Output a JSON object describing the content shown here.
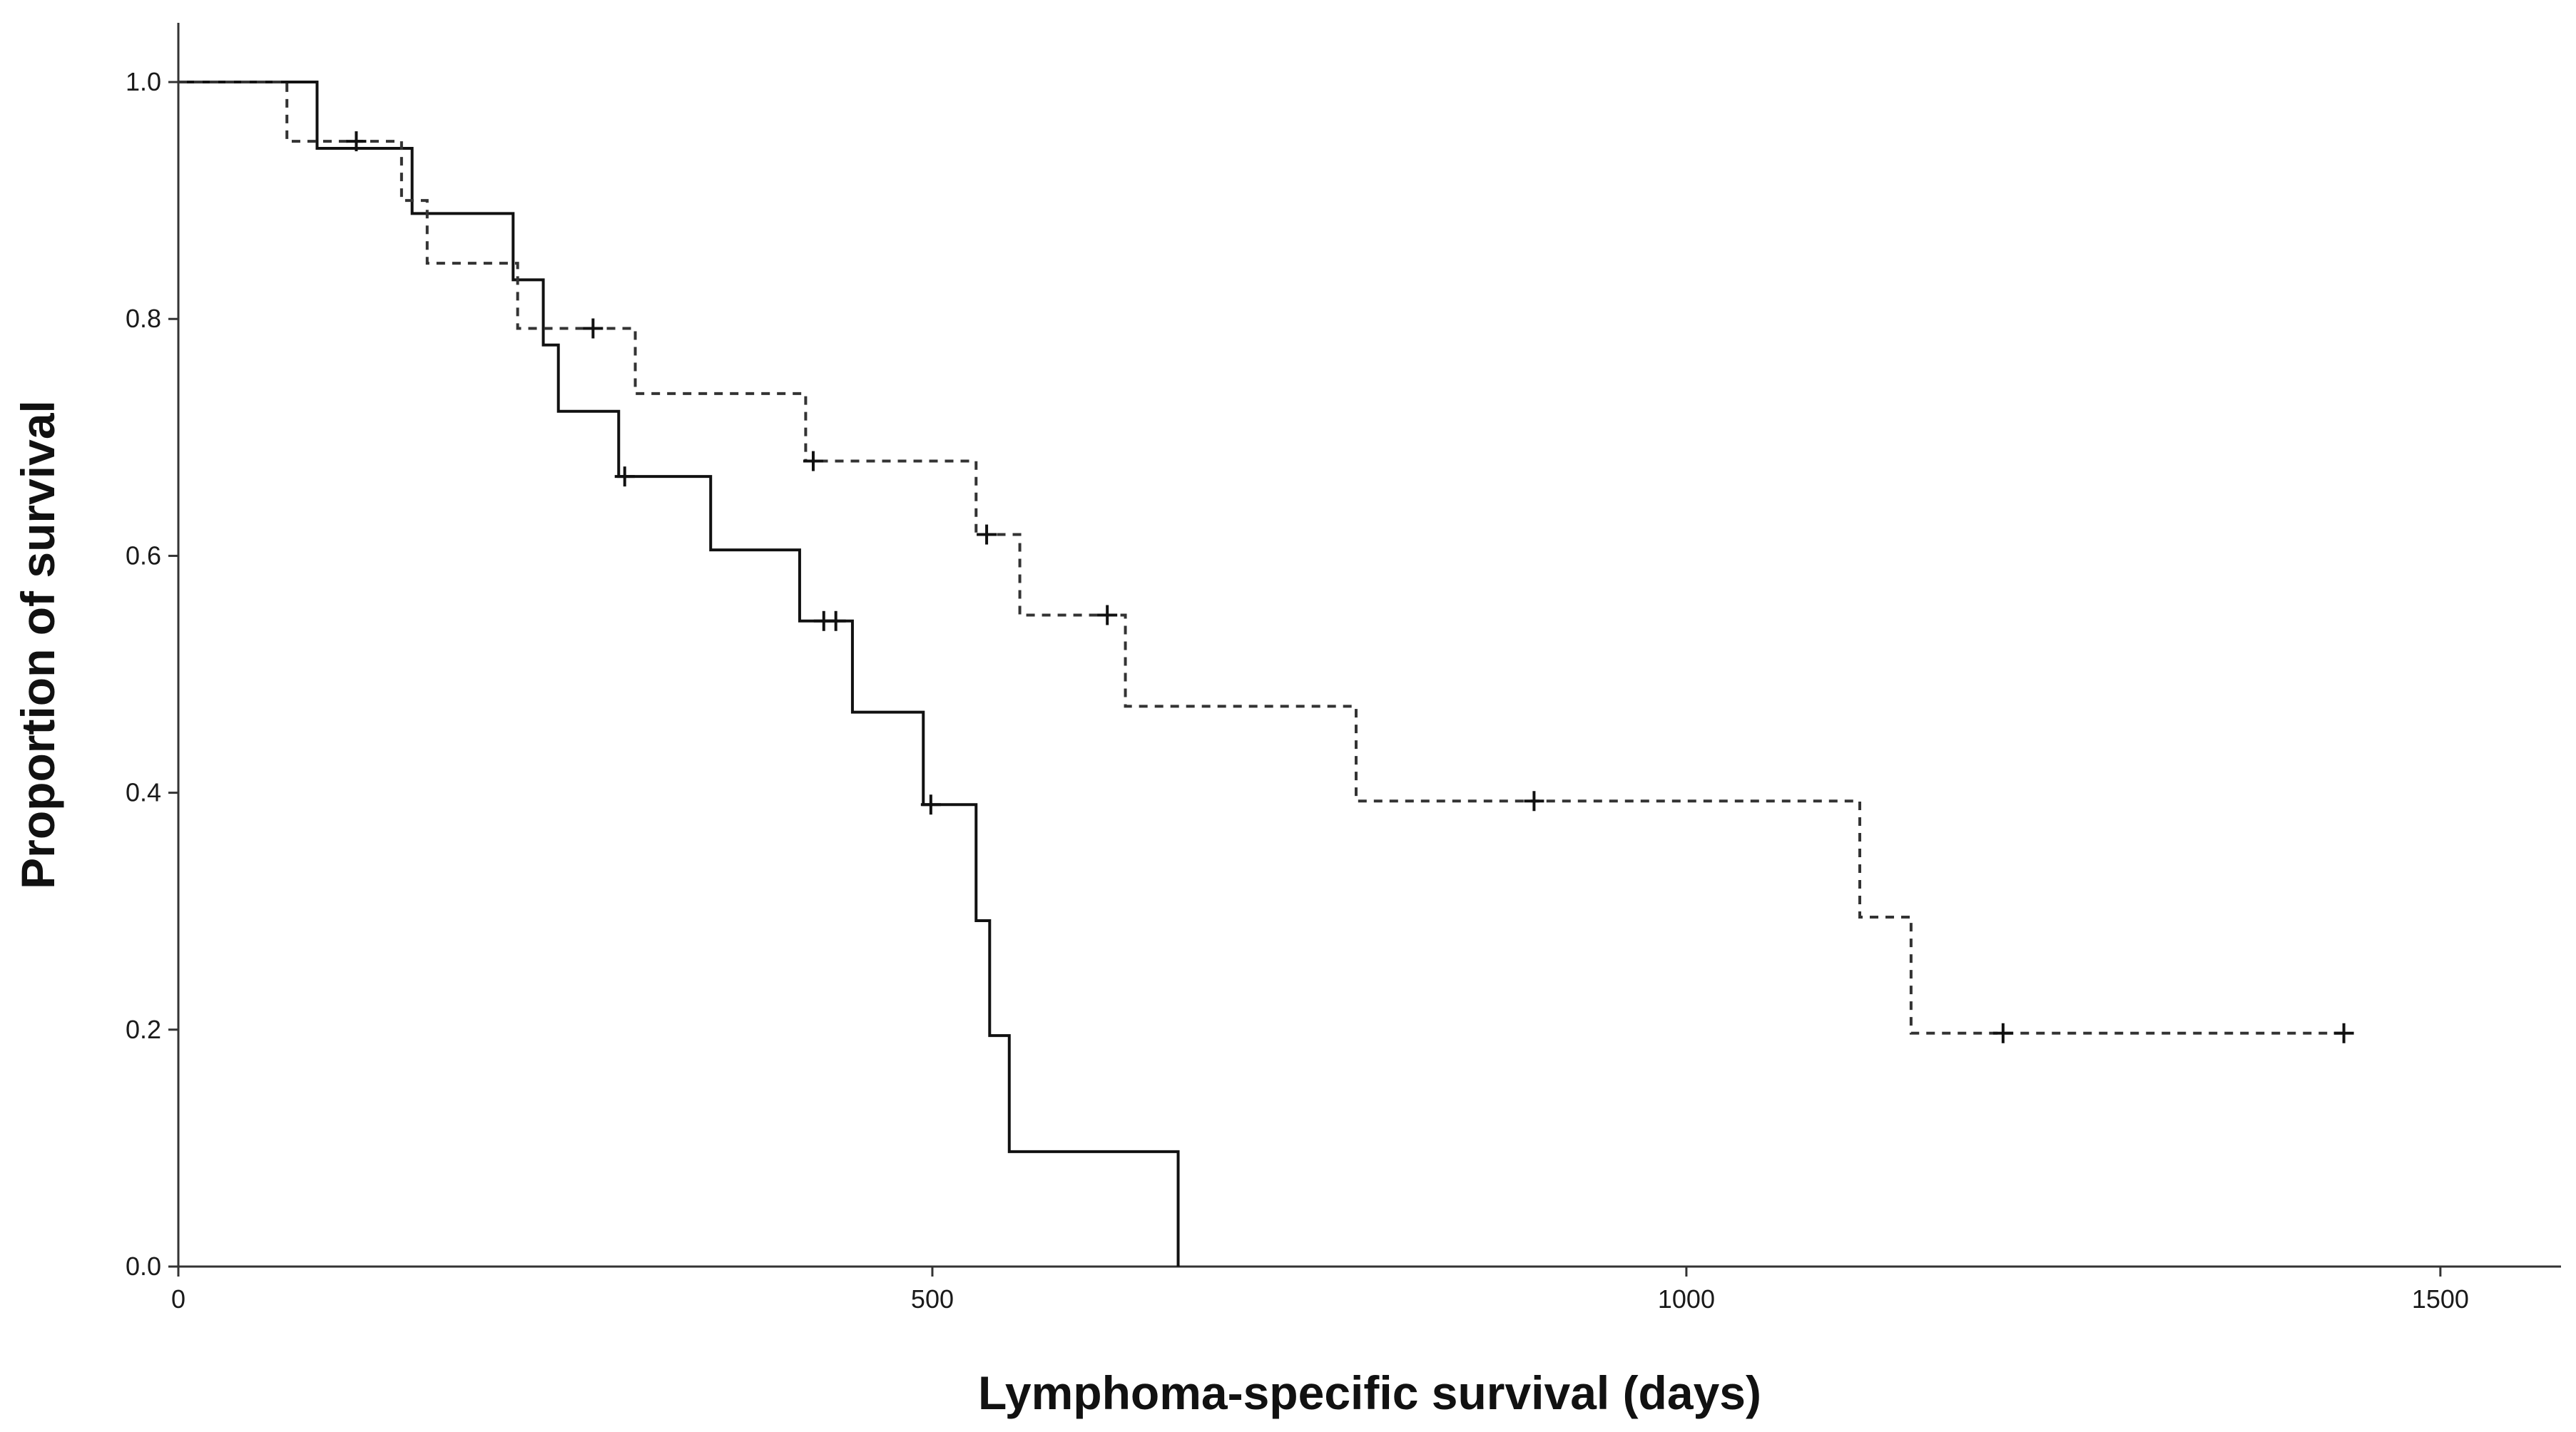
{
  "chart_data": {
    "type": "line",
    "subtype": "kaplan-meier",
    "title": "",
    "xlabel": "Lymphoma-specific survival (days)",
    "ylabel": "Proportion of survival",
    "xlim": [
      0,
      1580
    ],
    "ylim": [
      0,
      1.05
    ],
    "xticks": [
      0,
      500,
      1000,
      1500
    ],
    "xtick_labels": [
      "0",
      "500",
      "1000",
      "1500"
    ],
    "yticks": [
      0,
      0.2,
      0.4,
      0.6,
      0.8,
      1.0
    ],
    "ytick_labels": [
      "0.0",
      "0.2",
      "0.4",
      "0.6",
      "0.8",
      "1.0"
    ],
    "grid": false,
    "series": [
      {
        "name": "solid",
        "style": "solid",
        "color": "#111111",
        "steps": [
          [
            0,
            1.0
          ],
          [
            92,
            0.944
          ],
          [
            155,
            0.889
          ],
          [
            222,
            0.833
          ],
          [
            242,
            0.778
          ],
          [
            252,
            0.722
          ],
          [
            292,
            0.667
          ],
          [
            353,
            0.605
          ],
          [
            412,
            0.545
          ],
          [
            447,
            0.468
          ],
          [
            494,
            0.39
          ],
          [
            529,
            0.292
          ],
          [
            538,
            0.195
          ],
          [
            551,
            0.097
          ],
          [
            663,
            0.0
          ]
        ],
        "censored": [
          [
            296,
            0.667
          ],
          [
            428,
            0.545
          ],
          [
            436,
            0.545
          ],
          [
            499,
            0.39
          ]
        ]
      },
      {
        "name": "dashed",
        "style": "dashed",
        "color": "#333333",
        "steps": [
          [
            0,
            1.0
          ],
          [
            72,
            0.95
          ],
          [
            148,
            0.9
          ],
          [
            165,
            0.847
          ],
          [
            225,
            0.792
          ],
          [
            303,
            0.737
          ],
          [
            416,
            0.68
          ],
          [
            529,
            0.618
          ],
          [
            558,
            0.55
          ],
          [
            628,
            0.473
          ],
          [
            781,
            0.393
          ],
          [
            1115,
            0.295
          ],
          [
            1149,
            0.197
          ]
        ],
        "end_x": 1440,
        "censored": [
          [
            118,
            0.95
          ],
          [
            275,
            0.792
          ],
          [
            421,
            0.68
          ],
          [
            536,
            0.618
          ],
          [
            616,
            0.55
          ],
          [
            899,
            0.393
          ],
          [
            1210,
            0.197
          ],
          [
            1436,
            0.197
          ]
        ]
      }
    ]
  }
}
